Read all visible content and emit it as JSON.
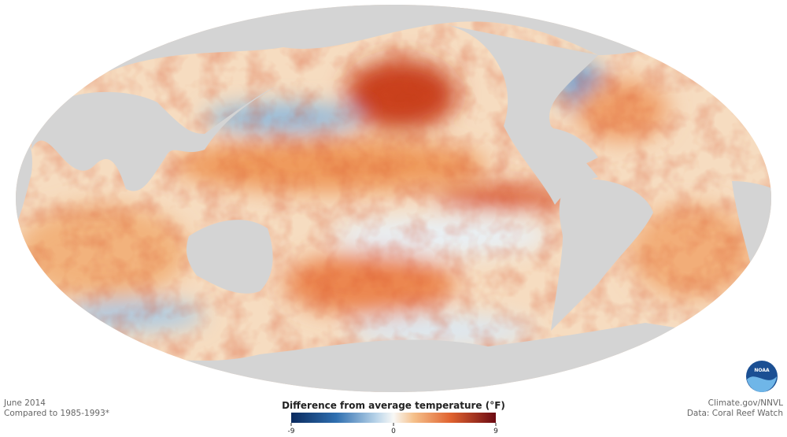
{
  "map": {
    "date": "June 2014",
    "baseline": "Compared to 1985-1993*",
    "credit": "Climate.gov/NNVL",
    "source": "Data: Coral Reef Watch",
    "legend": {
      "title": "Difference from average temperature (°F)",
      "range": [
        -9,
        9
      ],
      "ticks": [
        -9,
        0,
        9
      ]
    }
  }
}
